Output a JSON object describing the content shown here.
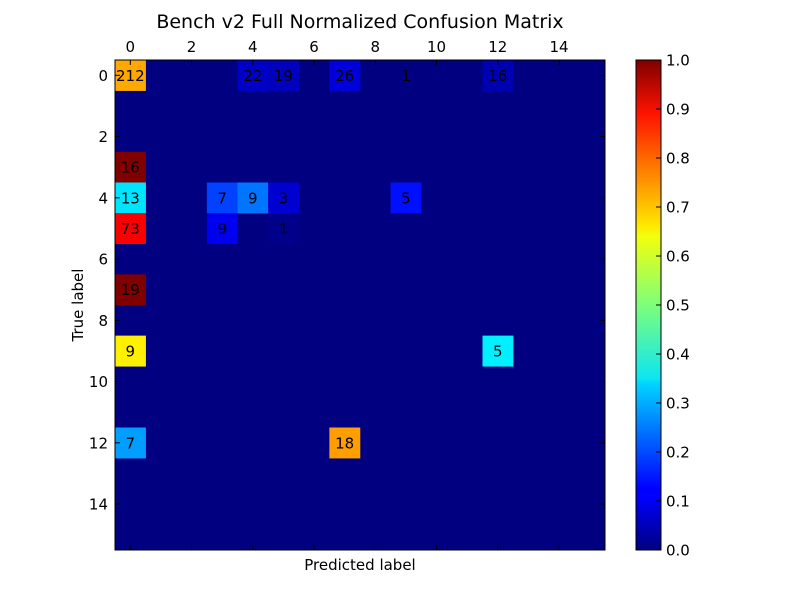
{
  "chart_data": {
    "type": "heatmap",
    "title": "Bench v2 Full Normalized Confusion Matrix",
    "xlabel": "Predicted label",
    "ylabel": "True label",
    "n_classes": 16,
    "x_ticks": [
      0,
      2,
      4,
      6,
      8,
      10,
      12,
      14
    ],
    "y_ticks": [
      0,
      2,
      4,
      6,
      8,
      10,
      12,
      14
    ],
    "colorbar": {
      "colormap": "jet",
      "range": [
        0.0,
        1.0
      ],
      "ticks": [
        "0.0",
        "0.1",
        "0.2",
        "0.3",
        "0.4",
        "0.5",
        "0.6",
        "0.7",
        "0.8",
        "0.9",
        "1.0"
      ]
    },
    "cells": [
      {
        "row": 0,
        "col": 0,
        "value": 0.71,
        "label": "212"
      },
      {
        "row": 0,
        "col": 4,
        "value": 0.07,
        "label": "22"
      },
      {
        "row": 0,
        "col": 5,
        "value": 0.06,
        "label": "19"
      },
      {
        "row": 0,
        "col": 7,
        "value": 0.09,
        "label": "26"
      },
      {
        "row": 0,
        "col": 9,
        "value": 0.0,
        "label": "1"
      },
      {
        "row": 0,
        "col": 12,
        "value": 0.05,
        "label": "16"
      },
      {
        "row": 3,
        "col": 0,
        "value": 1.0,
        "label": "16"
      },
      {
        "row": 4,
        "col": 0,
        "value": 0.35,
        "label": "13"
      },
      {
        "row": 4,
        "col": 3,
        "value": 0.19,
        "label": "7"
      },
      {
        "row": 4,
        "col": 4,
        "value": 0.24,
        "label": "9"
      },
      {
        "row": 4,
        "col": 5,
        "value": 0.08,
        "label": "3"
      },
      {
        "row": 4,
        "col": 9,
        "value": 0.14,
        "label": "5"
      },
      {
        "row": 5,
        "col": 0,
        "value": 0.88,
        "label": "73"
      },
      {
        "row": 5,
        "col": 3,
        "value": 0.11,
        "label": "9"
      },
      {
        "row": 5,
        "col": 5,
        "value": 0.01,
        "label": "1"
      },
      {
        "row": 7,
        "col": 0,
        "value": 1.0,
        "label": "19"
      },
      {
        "row": 9,
        "col": 0,
        "value": 0.64,
        "label": "9"
      },
      {
        "row": 9,
        "col": 12,
        "value": 0.36,
        "label": "5"
      },
      {
        "row": 12,
        "col": 0,
        "value": 0.28,
        "label": "7"
      },
      {
        "row": 12,
        "col": 7,
        "value": 0.72,
        "label": "18"
      }
    ]
  }
}
